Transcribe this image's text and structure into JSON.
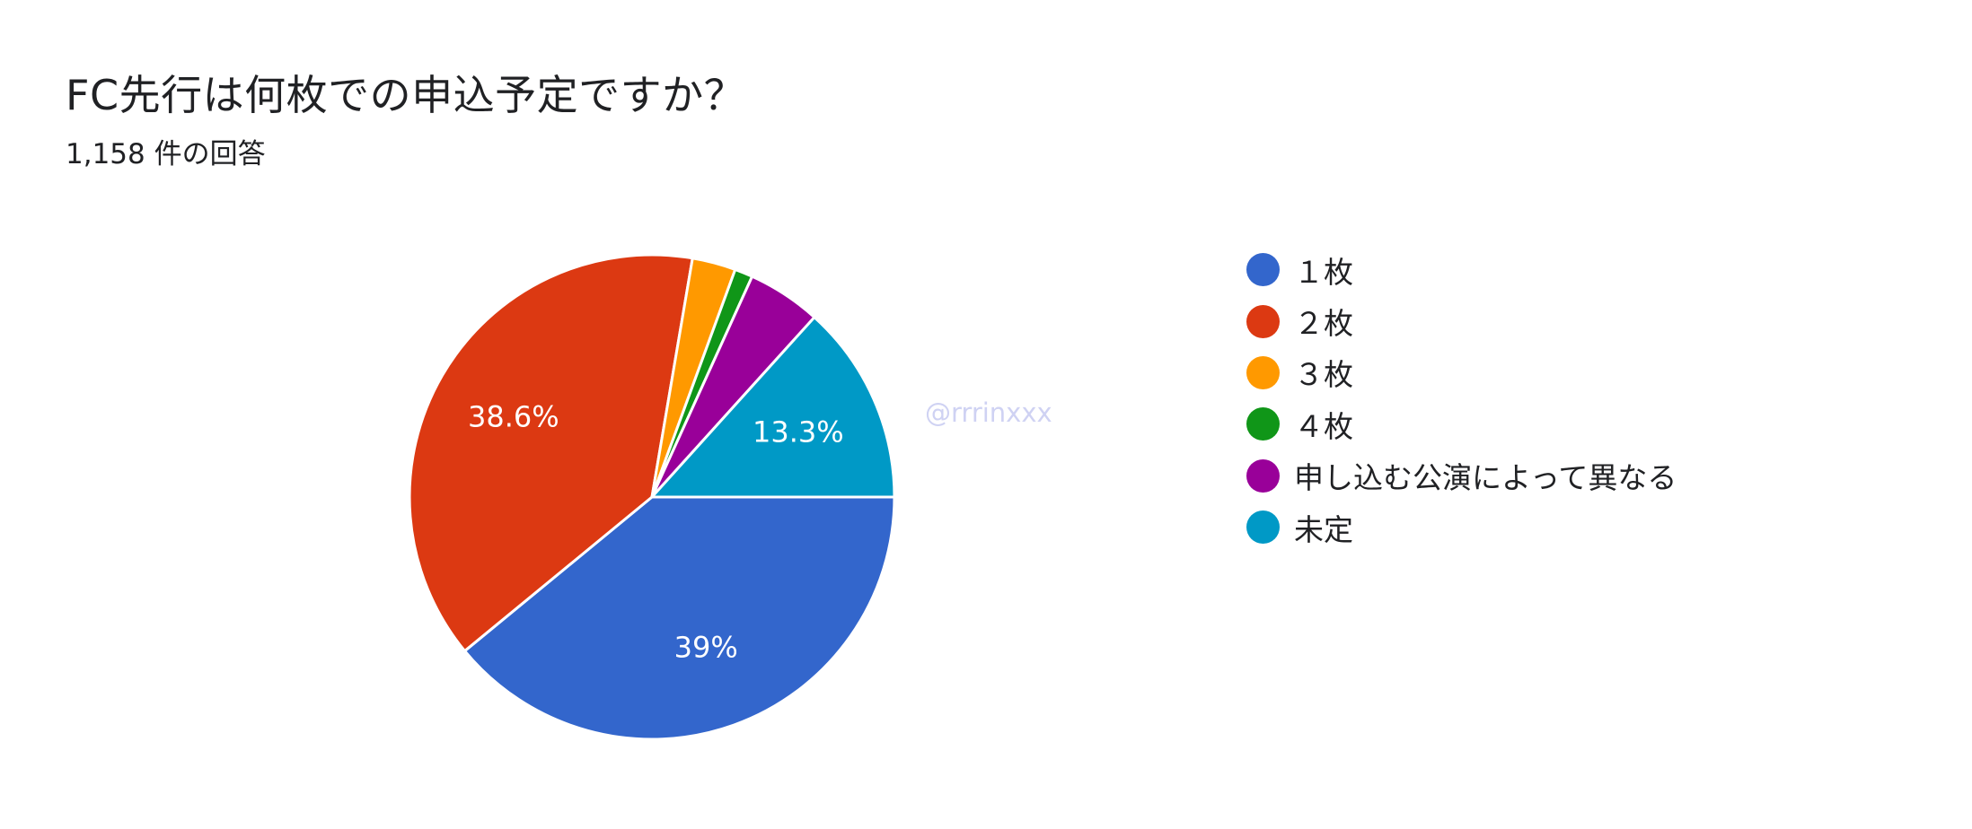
{
  "chart_data": {
    "type": "pie",
    "title": "FC先行は何枚での申込予定ですか？",
    "subtitle": "1,158 件の回答",
    "series": [
      {
        "name": "１枚",
        "value": 39.0,
        "label": "39%",
        "color": "#3366cc"
      },
      {
        "name": "２枚",
        "value": 38.6,
        "label": "38.6%",
        "color": "#dc3912"
      },
      {
        "name": "３枚",
        "value": 2.9,
        "label": "",
        "color": "#ff9900"
      },
      {
        "name": "４枚",
        "value": 1.2,
        "label": "",
        "color": "#109618"
      },
      {
        "name": "申し込む公演によって異なる",
        "value": 4.9,
        "label": "",
        "color": "#990099"
      },
      {
        "name": "未定",
        "value": 13.3,
        "label": "13.3%",
        "color": "#0099c6"
      }
    ],
    "legend_position": "right"
  },
  "watermark": "@rrrinxxx"
}
